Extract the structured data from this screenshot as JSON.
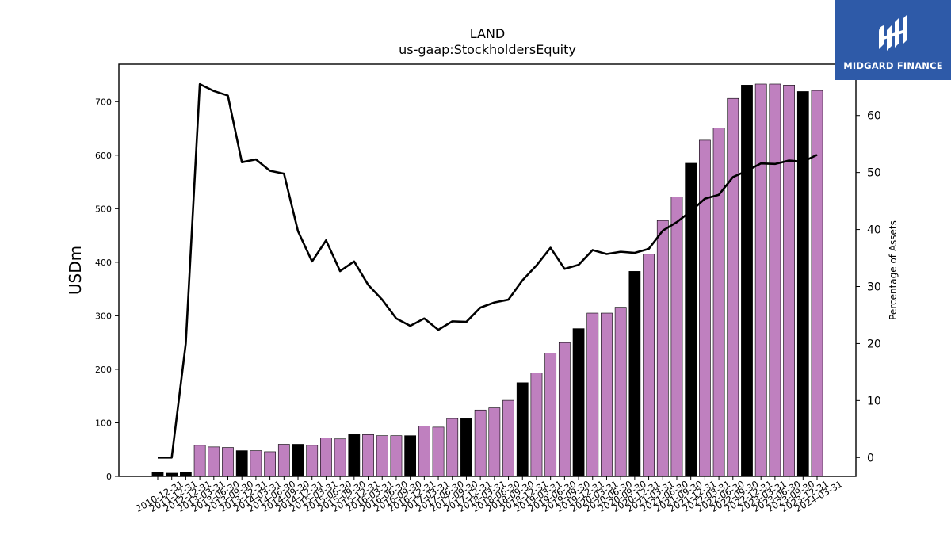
{
  "chart_data": {
    "type": "bar",
    "title": "LAND",
    "subtitle": "us-gaap:StockholdersEquity",
    "ylabel": "USDm",
    "y2label": "Percentage of Assets",
    "ylim": [
      0,
      770
    ],
    "y2lim": [
      -3.3,
      69
    ],
    "yticks": [
      0,
      100,
      200,
      300,
      400,
      500,
      600,
      700
    ],
    "y2ticks": [
      0,
      10,
      20,
      30,
      40,
      50,
      60
    ],
    "grid": false,
    "categories": [
      "2010-12-31",
      "2011-12-31",
      "2012-12-31",
      "2013-03-31",
      "2013-06-30",
      "2013-09-30",
      "2013-12-31",
      "2014-03-31",
      "2014-06-30",
      "2014-09-30",
      "2014-12-31",
      "2015-03-31",
      "2015-06-30",
      "2015-09-30",
      "2015-12-31",
      "2016-03-31",
      "2016-06-30",
      "2016-09-30",
      "2016-12-31",
      "2017-03-31",
      "2017-06-30",
      "2017-09-30",
      "2017-12-31",
      "2018-03-31",
      "2018-06-30",
      "2018-09-30",
      "2018-12-31",
      "2019-03-31",
      "2019-06-30",
      "2019-09-30",
      "2019-12-31",
      "2020-03-31",
      "2020-06-30",
      "2020-09-30",
      "2020-12-31",
      "2021-03-31",
      "2021-06-30",
      "2021-09-30",
      "2021-12-31",
      "2022-03-31",
      "2022-06-30",
      "2022-09-30",
      "2022-12-31",
      "2023-03-31",
      "2023-06-30",
      "2023-09-30",
      "2023-12-31",
      "2024-03-31"
    ],
    "xticklabels_shown": [
      "2010-12-31",
      "2011-12-31",
      "2012-12-31",
      "2013-03-31",
      "2013-06-30",
      "2013-09-30",
      "2013-12-31",
      "2014-03-31",
      "2014-06-30",
      "2014-09-30",
      "2014-12-31",
      "2015-03-31",
      "2015-06-30",
      "2015-09-30",
      "2015-12-31",
      "2016-03-31",
      "2016-06-30",
      "2016-09-30",
      "2016-12-31",
      "2017-03-31",
      "2017-06-30",
      "2017-09-30",
      "2017-12-31",
      "2018-03-31",
      "2018-06-30",
      "2018-09-30",
      "2018-12-31",
      "2019-03-31",
      "2019-06-30",
      "2019-09-30",
      "2019-12-31",
      "2020-03-31",
      "2020-06-30",
      "2020-09-30",
      "2020-12-31",
      "2021-03-31",
      "2021-06-30",
      "2021-09-30",
      "2021-12-31",
      "2022-03-31",
      "2022-06-30",
      "2022-09-30",
      "2022-12-31",
      "2023-03-31",
      "2023-06-30",
      "2023-09-30",
      "2023-12-31",
      "2024-03-31"
    ],
    "series": [
      {
        "type": "bar",
        "axis": "left",
        "values": [
          8,
          6,
          8,
          58,
          55,
          54,
          48,
          48,
          46,
          60,
          60,
          58,
          72,
          70,
          78,
          78,
          76,
          76,
          76,
          94,
          92,
          108,
          108,
          124,
          128,
          142,
          175,
          193,
          230,
          250,
          276,
          305,
          305,
          316,
          383,
          415,
          478,
          522,
          585,
          628,
          651,
          706,
          731,
          733,
          733,
          731,
          719,
          721
        ],
        "annual": [
          true,
          true,
          true,
          false,
          false,
          false,
          true,
          false,
          false,
          false,
          true,
          false,
          false,
          false,
          true,
          false,
          false,
          false,
          true,
          false,
          false,
          false,
          true,
          false,
          false,
          false,
          true,
          false,
          false,
          false,
          true,
          false,
          false,
          false,
          true,
          false,
          false,
          false,
          true,
          false,
          false,
          false,
          true,
          false,
          false,
          false,
          true,
          false
        ],
        "color_annual": "#000000",
        "color_quarterly": "#bf80bf"
      },
      {
        "type": "line",
        "axis": "right",
        "color": "#000000",
        "values": [
          0,
          0,
          20,
          65.5,
          64.3,
          63.5,
          51.8,
          52.3,
          50.3,
          49.8,
          39.7,
          34.4,
          38.1,
          32.7,
          34.4,
          30.3,
          27.7,
          24.4,
          23.1,
          24.4,
          22.4,
          23.9,
          23.8,
          26.3,
          27.2,
          27.7,
          31.1,
          33.7,
          36.8,
          33.1,
          33.8,
          36.4,
          35.7,
          36.1,
          35.9,
          36.6,
          39.8,
          41.3,
          43.2,
          45.4,
          46.1,
          49.2,
          50.3,
          51.6,
          51.5,
          52.1,
          51.9,
          53.1
        ]
      }
    ]
  },
  "logo": {
    "text": "MIDGARD FINANCE",
    "bg": "#2e5aa8",
    "icon": "midgard-logo-icon"
  }
}
